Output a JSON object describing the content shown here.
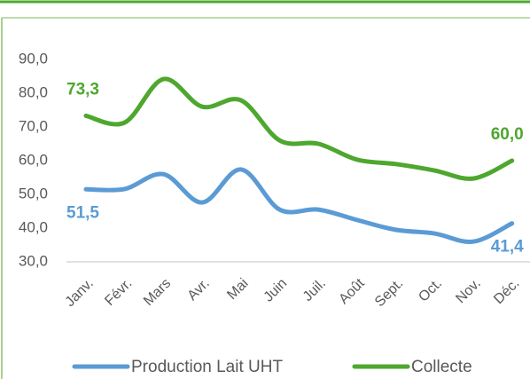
{
  "chart_data": {
    "type": "line",
    "categories": [
      "Janv.",
      "Févr.",
      "Mars",
      "Avr.",
      "Mai",
      "Juin",
      "Juil.",
      "Août",
      "Sept.",
      "Oct.",
      "Nov.",
      "Déc."
    ],
    "series": [
      {
        "name": "Production Lait UHT",
        "color": "#5b9bd5",
        "values": [
          51.5,
          51.6,
          56,
          47.6,
          57.4,
          45.5,
          45.5,
          42.4,
          39.5,
          38.4,
          36,
          41.4
        ],
        "value_labels": [
          "51,5",
          null,
          null,
          null,
          null,
          null,
          null,
          null,
          null,
          null,
          null,
          "41,4"
        ]
      },
      {
        "name": "Collecte",
        "color": "#4ea72e",
        "values": [
          73.3,
          71.3,
          84.2,
          76,
          77.9,
          66,
          65,
          60.3,
          59,
          57.1,
          54.7,
          60.0
        ],
        "value_labels": [
          "73,3",
          null,
          null,
          null,
          null,
          null,
          null,
          null,
          null,
          null,
          null,
          "60,0"
        ]
      }
    ],
    "ylim": [
      30,
      90
    ],
    "yticks": [
      {
        "value": 30,
        "label": "30,0"
      },
      {
        "value": 40,
        "label": "40,0"
      },
      {
        "value": 50,
        "label": "50,0"
      },
      {
        "value": 60,
        "label": "60,0"
      },
      {
        "value": 70,
        "label": "70,0"
      },
      {
        "value": 80,
        "label": "80,0"
      },
      {
        "value": 90,
        "label": "90,0"
      }
    ],
    "grid": false,
    "legend": "bottom"
  }
}
